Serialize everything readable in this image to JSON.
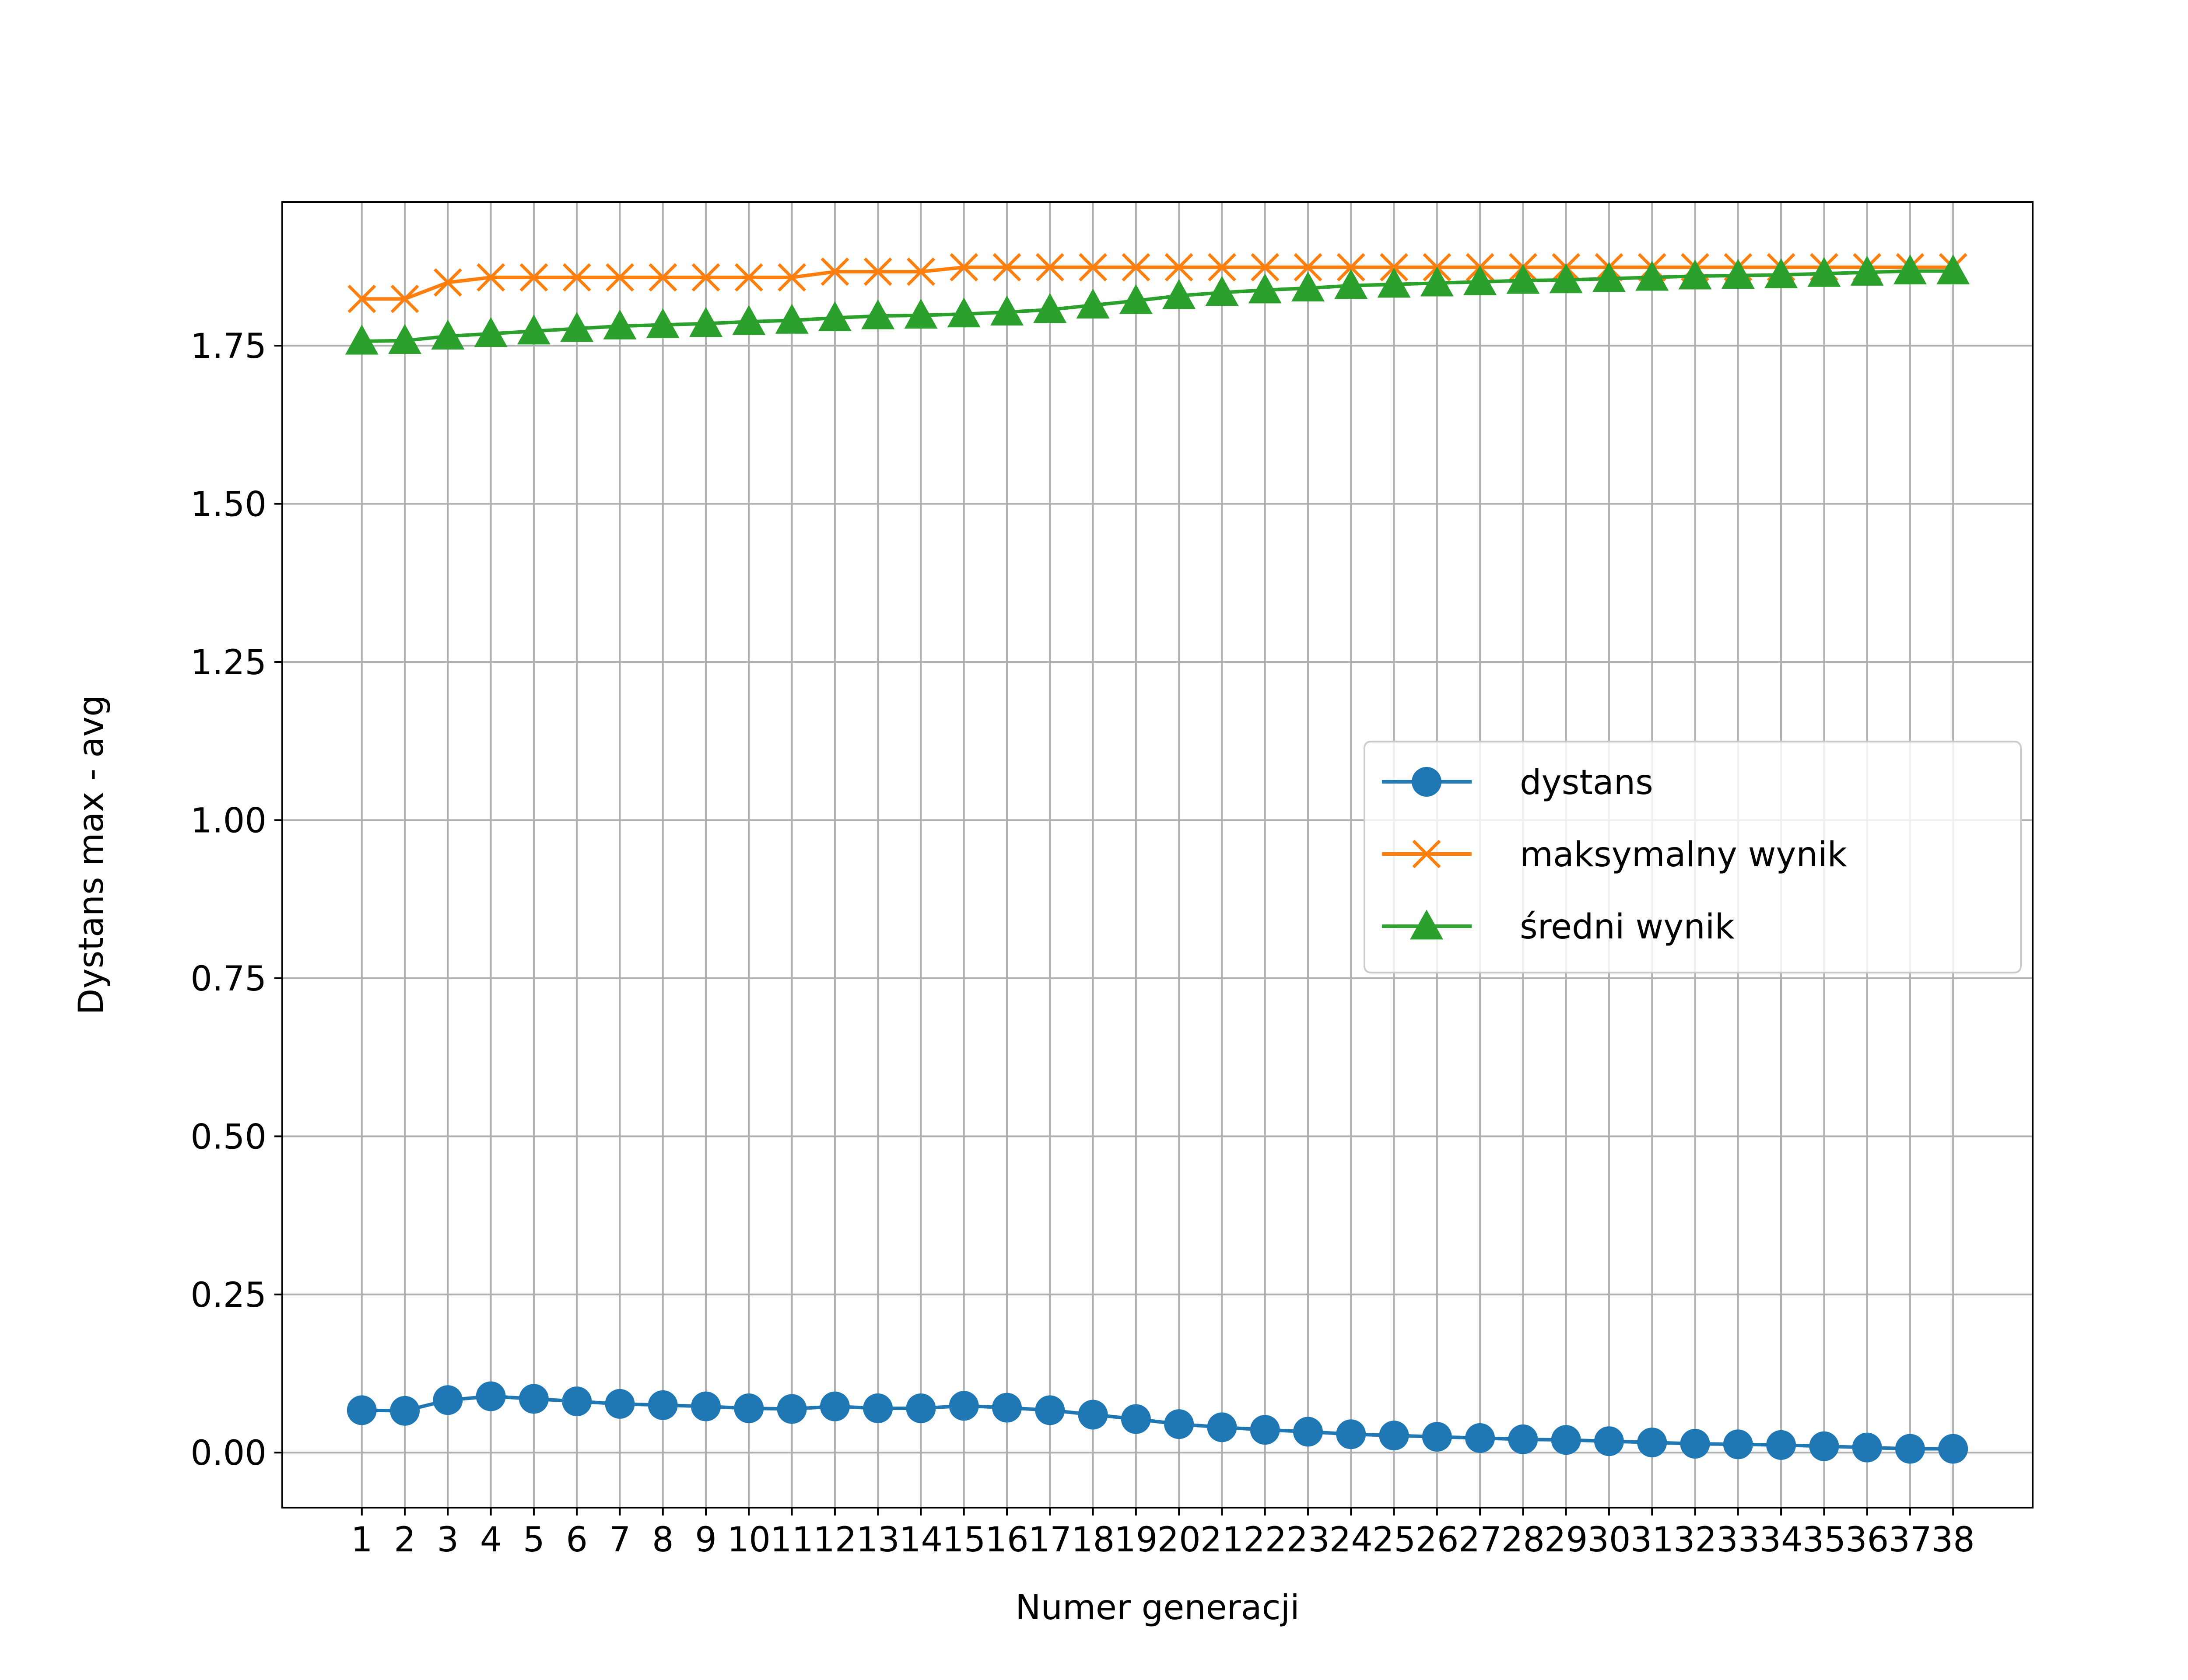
{
  "chart_data": {
    "type": "line",
    "title": "",
    "xlabel": "Numer generacji",
    "ylabel": "Dystans max - avg",
    "x": [
      1,
      2,
      3,
      4,
      5,
      6,
      7,
      8,
      9,
      10,
      11,
      12,
      13,
      14,
      15,
      16,
      17,
      18,
      19,
      20,
      21,
      22,
      23,
      24,
      25,
      26,
      27,
      28,
      29,
      30,
      31,
      32,
      33,
      34,
      35,
      36,
      37,
      38
    ],
    "x_ticks": [
      "1",
      "2",
      "3",
      "4",
      "5",
      "6",
      "7",
      "8",
      "9",
      "10",
      "11",
      "12",
      "13",
      "14",
      "15",
      "16",
      "17",
      "18",
      "19",
      "20",
      "21",
      "22",
      "23",
      "24",
      "25",
      "26",
      "27",
      "28",
      "29",
      "30",
      "31",
      "32",
      "33",
      "34",
      "35",
      "36",
      "37",
      "38"
    ],
    "y_ticks": [
      "0.00",
      "0.25",
      "0.50",
      "0.75",
      "1.00",
      "1.25",
      "1.50",
      "1.75"
    ],
    "xlim": [
      -0.85,
      39.85
    ],
    "ylim": [
      -0.087,
      1.977
    ],
    "grid": true,
    "legend_position": "center-right",
    "series": [
      {
        "name": "dystans",
        "color": "#1f77b4",
        "marker": "circle",
        "values": [
          0.067,
          0.066,
          0.083,
          0.089,
          0.085,
          0.081,
          0.077,
          0.075,
          0.073,
          0.07,
          0.069,
          0.073,
          0.07,
          0.07,
          0.074,
          0.071,
          0.067,
          0.06,
          0.053,
          0.045,
          0.04,
          0.036,
          0.033,
          0.029,
          0.027,
          0.025,
          0.023,
          0.021,
          0.02,
          0.018,
          0.016,
          0.014,
          0.013,
          0.012,
          0.01,
          0.008,
          0.006,
          0.006
        ]
      },
      {
        "name": "maksymalny wynik",
        "color": "#ff7f0e",
        "marker": "x",
        "values": [
          1.824,
          1.824,
          1.85,
          1.858,
          1.858,
          1.858,
          1.858,
          1.858,
          1.858,
          1.858,
          1.858,
          1.867,
          1.867,
          1.867,
          1.874,
          1.874,
          1.874,
          1.874,
          1.874,
          1.874,
          1.874,
          1.874,
          1.874,
          1.874,
          1.874,
          1.874,
          1.874,
          1.874,
          1.874,
          1.874,
          1.874,
          1.874,
          1.874,
          1.874,
          1.874,
          1.874,
          1.874,
          1.874
        ]
      },
      {
        "name": "średni wynik",
        "color": "#2ca02c",
        "marker": "triangle",
        "values": [
          1.757,
          1.758,
          1.765,
          1.769,
          1.773,
          1.777,
          1.781,
          1.783,
          1.785,
          1.788,
          1.79,
          1.794,
          1.797,
          1.798,
          1.8,
          1.803,
          1.807,
          1.814,
          1.821,
          1.829,
          1.834,
          1.838,
          1.841,
          1.845,
          1.847,
          1.849,
          1.851,
          1.853,
          1.854,
          1.856,
          1.858,
          1.86,
          1.861,
          1.862,
          1.864,
          1.866,
          1.868,
          1.868
        ]
      }
    ]
  }
}
